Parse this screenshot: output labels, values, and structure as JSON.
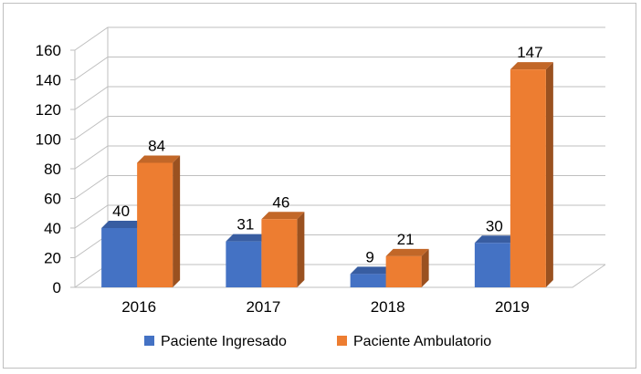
{
  "chart_data": {
    "type": "bar",
    "categories": [
      "2016",
      "2017",
      "2018",
      "2019"
    ],
    "series": [
      {
        "name": "Paciente Ingresado",
        "values": [
          40,
          31,
          9,
          30
        ],
        "color": "#4472C4"
      },
      {
        "name": "Paciente Ambulatorio",
        "values": [
          84,
          46,
          21,
          147
        ],
        "color": "#ED7D31"
      }
    ],
    "yticks": [
      "0",
      "20",
      "40",
      "60",
      "80",
      "100",
      "120",
      "140",
      "160"
    ],
    "ylim": [
      0,
      160
    ],
    "grid": true,
    "legend": "bottom",
    "style": "3d"
  }
}
